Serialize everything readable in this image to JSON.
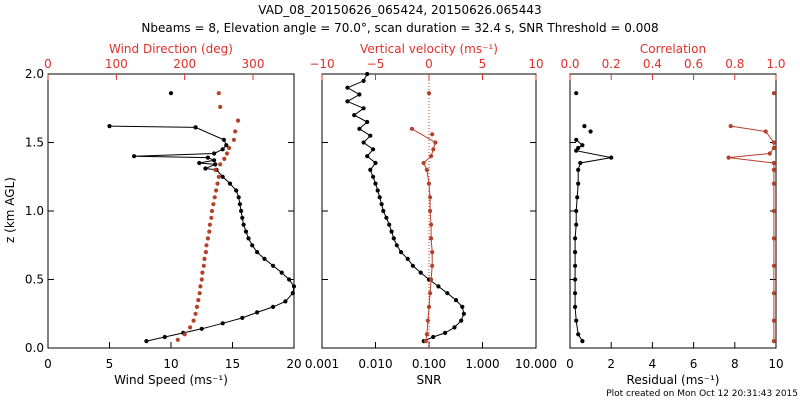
{
  "figure": {
    "title_line1": "VAD_08_20150626_065424, 20150626.065443",
    "title_line2": "Nbeams = 8, Elevation angle = 70.0°, scan duration = 32.4 s, SNR Threshold = 0.008",
    "footer": "Plot created on Mon Oct 12 20:31:43 2015",
    "colors": {
      "black_series": "#000000",
      "red_series": "#b5402a",
      "red_axis": "#e0302a"
    }
  },
  "chart_data": [
    {
      "type": "scatter",
      "panel": "wind",
      "ylabel": "z (km AGL)",
      "ylim": [
        0,
        2.0
      ],
      "y_ticks": [
        "0.0",
        "0.5",
        "1.0",
        "1.5",
        "2.0"
      ],
      "x_bottom": {
        "label": "Wind Speed (ms⁻¹)",
        "range": [
          0,
          20
        ],
        "ticks": [
          "0",
          "5",
          "10",
          "15",
          "20"
        ]
      },
      "x_top": {
        "label": "Wind Direction (deg)",
        "range": [
          0,
          360
        ],
        "ticks": [
          "0",
          "100",
          "200",
          "300"
        ]
      },
      "series": [
        {
          "axis": "bottom",
          "color": "#000000",
          "points": [
            [
              8.0,
              0.05
            ],
            [
              9.5,
              0.08
            ],
            [
              11.0,
              0.11
            ],
            [
              12.5,
              0.14
            ],
            [
              14.2,
              0.18
            ],
            [
              15.8,
              0.22
            ],
            [
              17.0,
              0.26
            ],
            [
              18.3,
              0.3
            ],
            [
              19.3,
              0.34
            ],
            [
              19.9,
              0.4
            ],
            [
              20.0,
              0.45
            ],
            [
              19.6,
              0.5
            ],
            [
              19.0,
              0.55
            ],
            [
              18.3,
              0.6
            ],
            [
              17.6,
              0.65
            ],
            [
              17.0,
              0.7
            ],
            [
              16.6,
              0.75
            ],
            [
              16.3,
              0.8
            ],
            [
              16.1,
              0.85
            ],
            [
              15.9,
              0.9
            ],
            [
              15.8,
              0.95
            ],
            [
              15.7,
              1.0
            ],
            [
              15.6,
              1.05
            ],
            [
              15.5,
              1.1
            ],
            [
              15.3,
              1.15
            ],
            [
              14.8,
              1.2
            ],
            [
              14.2,
              1.25
            ],
            [
              13.7,
              1.3
            ],
            [
              12.8,
              1.31
            ],
            [
              13.6,
              1.34
            ],
            [
              12.3,
              1.35
            ],
            [
              13.5,
              1.37
            ],
            [
              13.0,
              1.39
            ],
            [
              7.0,
              1.4
            ],
            [
              13.5,
              1.42
            ],
            [
              14.2,
              1.45
            ],
            [
              14.5,
              1.48
            ],
            [
              14.3,
              1.52
            ],
            [
              12.0,
              1.61
            ],
            [
              5.0,
              1.62
            ],
            [
              10.0,
              1.86
            ]
          ],
          "connected_until_index": 39
        },
        {
          "axis": "top",
          "color": "#b5402a",
          "points": [
            [
              190,
              0.06
            ],
            [
              200,
              0.1
            ],
            [
              208,
              0.15
            ],
            [
              213,
              0.2
            ],
            [
              216,
              0.25
            ],
            [
              218,
              0.3
            ],
            [
              220,
              0.35
            ],
            [
              222,
              0.4
            ],
            [
              223,
              0.45
            ],
            [
              225,
              0.5
            ],
            [
              226,
              0.55
            ],
            [
              228,
              0.6
            ],
            [
              229,
              0.65
            ],
            [
              231,
              0.7
            ],
            [
              232,
              0.75
            ],
            [
              234,
              0.8
            ],
            [
              236,
              0.85
            ],
            [
              237,
              0.9
            ],
            [
              239,
              0.95
            ],
            [
              240,
              1.0
            ],
            [
              242,
              1.05
            ],
            [
              244,
              1.1
            ],
            [
              246,
              1.15
            ],
            [
              248,
              1.2
            ],
            [
              250,
              1.25
            ],
            [
              245,
              1.3
            ],
            [
              252,
              1.34
            ],
            [
              258,
              1.38
            ],
            [
              262,
              1.42
            ],
            [
              265,
              1.46
            ],
            [
              272,
              1.52
            ],
            [
              274,
              1.58
            ],
            [
              278,
              1.66
            ],
            [
              252,
              1.76
            ],
            [
              250,
              1.86
            ]
          ],
          "connected_until_index": -1
        }
      ]
    },
    {
      "type": "scatter",
      "panel": "vertical",
      "x_bottom": {
        "label": "SNR",
        "scale": "log",
        "range": [
          0.001,
          10.0
        ],
        "ticks": [
          "0.001",
          "0.010",
          "0.100",
          "1.000",
          "10.000"
        ]
      },
      "x_top": {
        "label": "Vertical velocity (ms⁻¹)",
        "range": [
          -10,
          10
        ],
        "ticks": [
          "−10",
          "−5",
          "0",
          "5",
          "10"
        ]
      },
      "zero_line_top": 0,
      "series": [
        {
          "axis": "bottom",
          "color": "#000000",
          "points": [
            [
              0.08,
              0.05
            ],
            [
              0.12,
              0.08
            ],
            [
              0.2,
              0.11
            ],
            [
              0.3,
              0.15
            ],
            [
              0.4,
              0.2
            ],
            [
              0.45,
              0.25
            ],
            [
              0.42,
              0.3
            ],
            [
              0.32,
              0.35
            ],
            [
              0.22,
              0.4
            ],
            [
              0.15,
              0.45
            ],
            [
              0.1,
              0.5
            ],
            [
              0.07,
              0.55
            ],
            [
              0.05,
              0.6
            ],
            [
              0.04,
              0.65
            ],
            [
              0.03,
              0.7
            ],
            [
              0.025,
              0.75
            ],
            [
              0.022,
              0.8
            ],
            [
              0.02,
              0.85
            ],
            [
              0.018,
              0.9
            ],
            [
              0.016,
              0.95
            ],
            [
              0.014,
              1.0
            ],
            [
              0.013,
              1.05
            ],
            [
              0.012,
              1.1
            ],
            [
              0.011,
              1.15
            ],
            [
              0.01,
              1.2
            ],
            [
              0.009,
              1.25
            ],
            [
              0.008,
              1.3
            ],
            [
              0.01,
              1.35
            ],
            [
              0.007,
              1.4
            ],
            [
              0.009,
              1.45
            ],
            [
              0.006,
              1.5
            ],
            [
              0.008,
              1.55
            ],
            [
              0.005,
              1.6
            ],
            [
              0.007,
              1.65
            ],
            [
              0.004,
              1.7
            ],
            [
              0.006,
              1.75
            ],
            [
              0.003,
              1.8
            ],
            [
              0.005,
              1.85
            ],
            [
              0.003,
              1.9
            ],
            [
              0.006,
              1.95
            ],
            [
              0.007,
              2.0
            ]
          ],
          "connected_until_index": 40
        },
        {
          "axis": "top",
          "color": "#b5402a",
          "points": [
            [
              -0.3,
              0.05
            ],
            [
              -0.2,
              0.1
            ],
            [
              -0.1,
              0.2
            ],
            [
              0.0,
              0.3
            ],
            [
              0.1,
              0.4
            ],
            [
              0.2,
              0.5
            ],
            [
              0.3,
              0.6
            ],
            [
              0.3,
              0.7
            ],
            [
              0.2,
              0.8
            ],
            [
              0.2,
              0.9
            ],
            [
              0.1,
              1.0
            ],
            [
              0.1,
              1.1
            ],
            [
              0.0,
              1.2
            ],
            [
              -0.2,
              1.3
            ],
            [
              -0.5,
              1.35
            ],
            [
              0.2,
              1.4
            ],
            [
              0.4,
              1.45
            ],
            [
              0.6,
              1.5
            ],
            [
              -1.6,
              1.6
            ],
            [
              0.3,
              1.56
            ],
            [
              0.0,
              1.86
            ]
          ],
          "connected_until_index": 18
        }
      ]
    },
    {
      "type": "scatter",
      "panel": "residual",
      "x_bottom": {
        "label": "Residual (ms⁻¹)",
        "range": [
          0,
          10
        ],
        "ticks": [
          "0",
          "2",
          "4",
          "6",
          "8",
          "10"
        ]
      },
      "x_top": {
        "label": "Correlation",
        "range": [
          0.0,
          1.0
        ],
        "ticks": [
          "0.0",
          "0.2",
          "0.4",
          "0.6",
          "0.8",
          "1.0"
        ]
      },
      "series": [
        {
          "axis": "bottom",
          "color": "#000000",
          "points": [
            [
              0.6,
              0.05
            ],
            [
              0.4,
              0.1
            ],
            [
              0.3,
              0.2
            ],
            [
              0.25,
              0.3
            ],
            [
              0.25,
              0.4
            ],
            [
              0.25,
              0.5
            ],
            [
              0.25,
              0.6
            ],
            [
              0.25,
              0.7
            ],
            [
              0.25,
              0.8
            ],
            [
              0.3,
              0.9
            ],
            [
              0.3,
              1.0
            ],
            [
              0.35,
              1.1
            ],
            [
              0.4,
              1.2
            ],
            [
              0.4,
              1.3
            ],
            [
              0.5,
              1.35
            ],
            [
              2.0,
              1.39
            ],
            [
              0.3,
              1.44
            ],
            [
              0.4,
              1.46
            ],
            [
              0.6,
              1.48
            ],
            [
              0.3,
              1.52
            ],
            [
              1.0,
              1.58
            ],
            [
              0.7,
              1.62
            ],
            [
              0.3,
              1.86
            ]
          ],
          "connected_until_index": 19
        },
        {
          "axis": "top",
          "color": "#b5402a",
          "points": [
            [
              0.99,
              0.05
            ],
            [
              0.99,
              0.2
            ],
            [
              0.99,
              0.4
            ],
            [
              0.99,
              0.6
            ],
            [
              0.99,
              0.8
            ],
            [
              0.99,
              1.0
            ],
            [
              0.99,
              1.2
            ],
            [
              0.99,
              1.3
            ],
            [
              0.99,
              1.35
            ],
            [
              0.77,
              1.39
            ],
            [
              0.97,
              1.42
            ],
            [
              0.99,
              1.46
            ],
            [
              0.99,
              1.5
            ],
            [
              0.95,
              1.58
            ],
            [
              0.78,
              1.62
            ],
            [
              0.99,
              1.86
            ]
          ],
          "connected_until_index": 14
        }
      ]
    }
  ]
}
